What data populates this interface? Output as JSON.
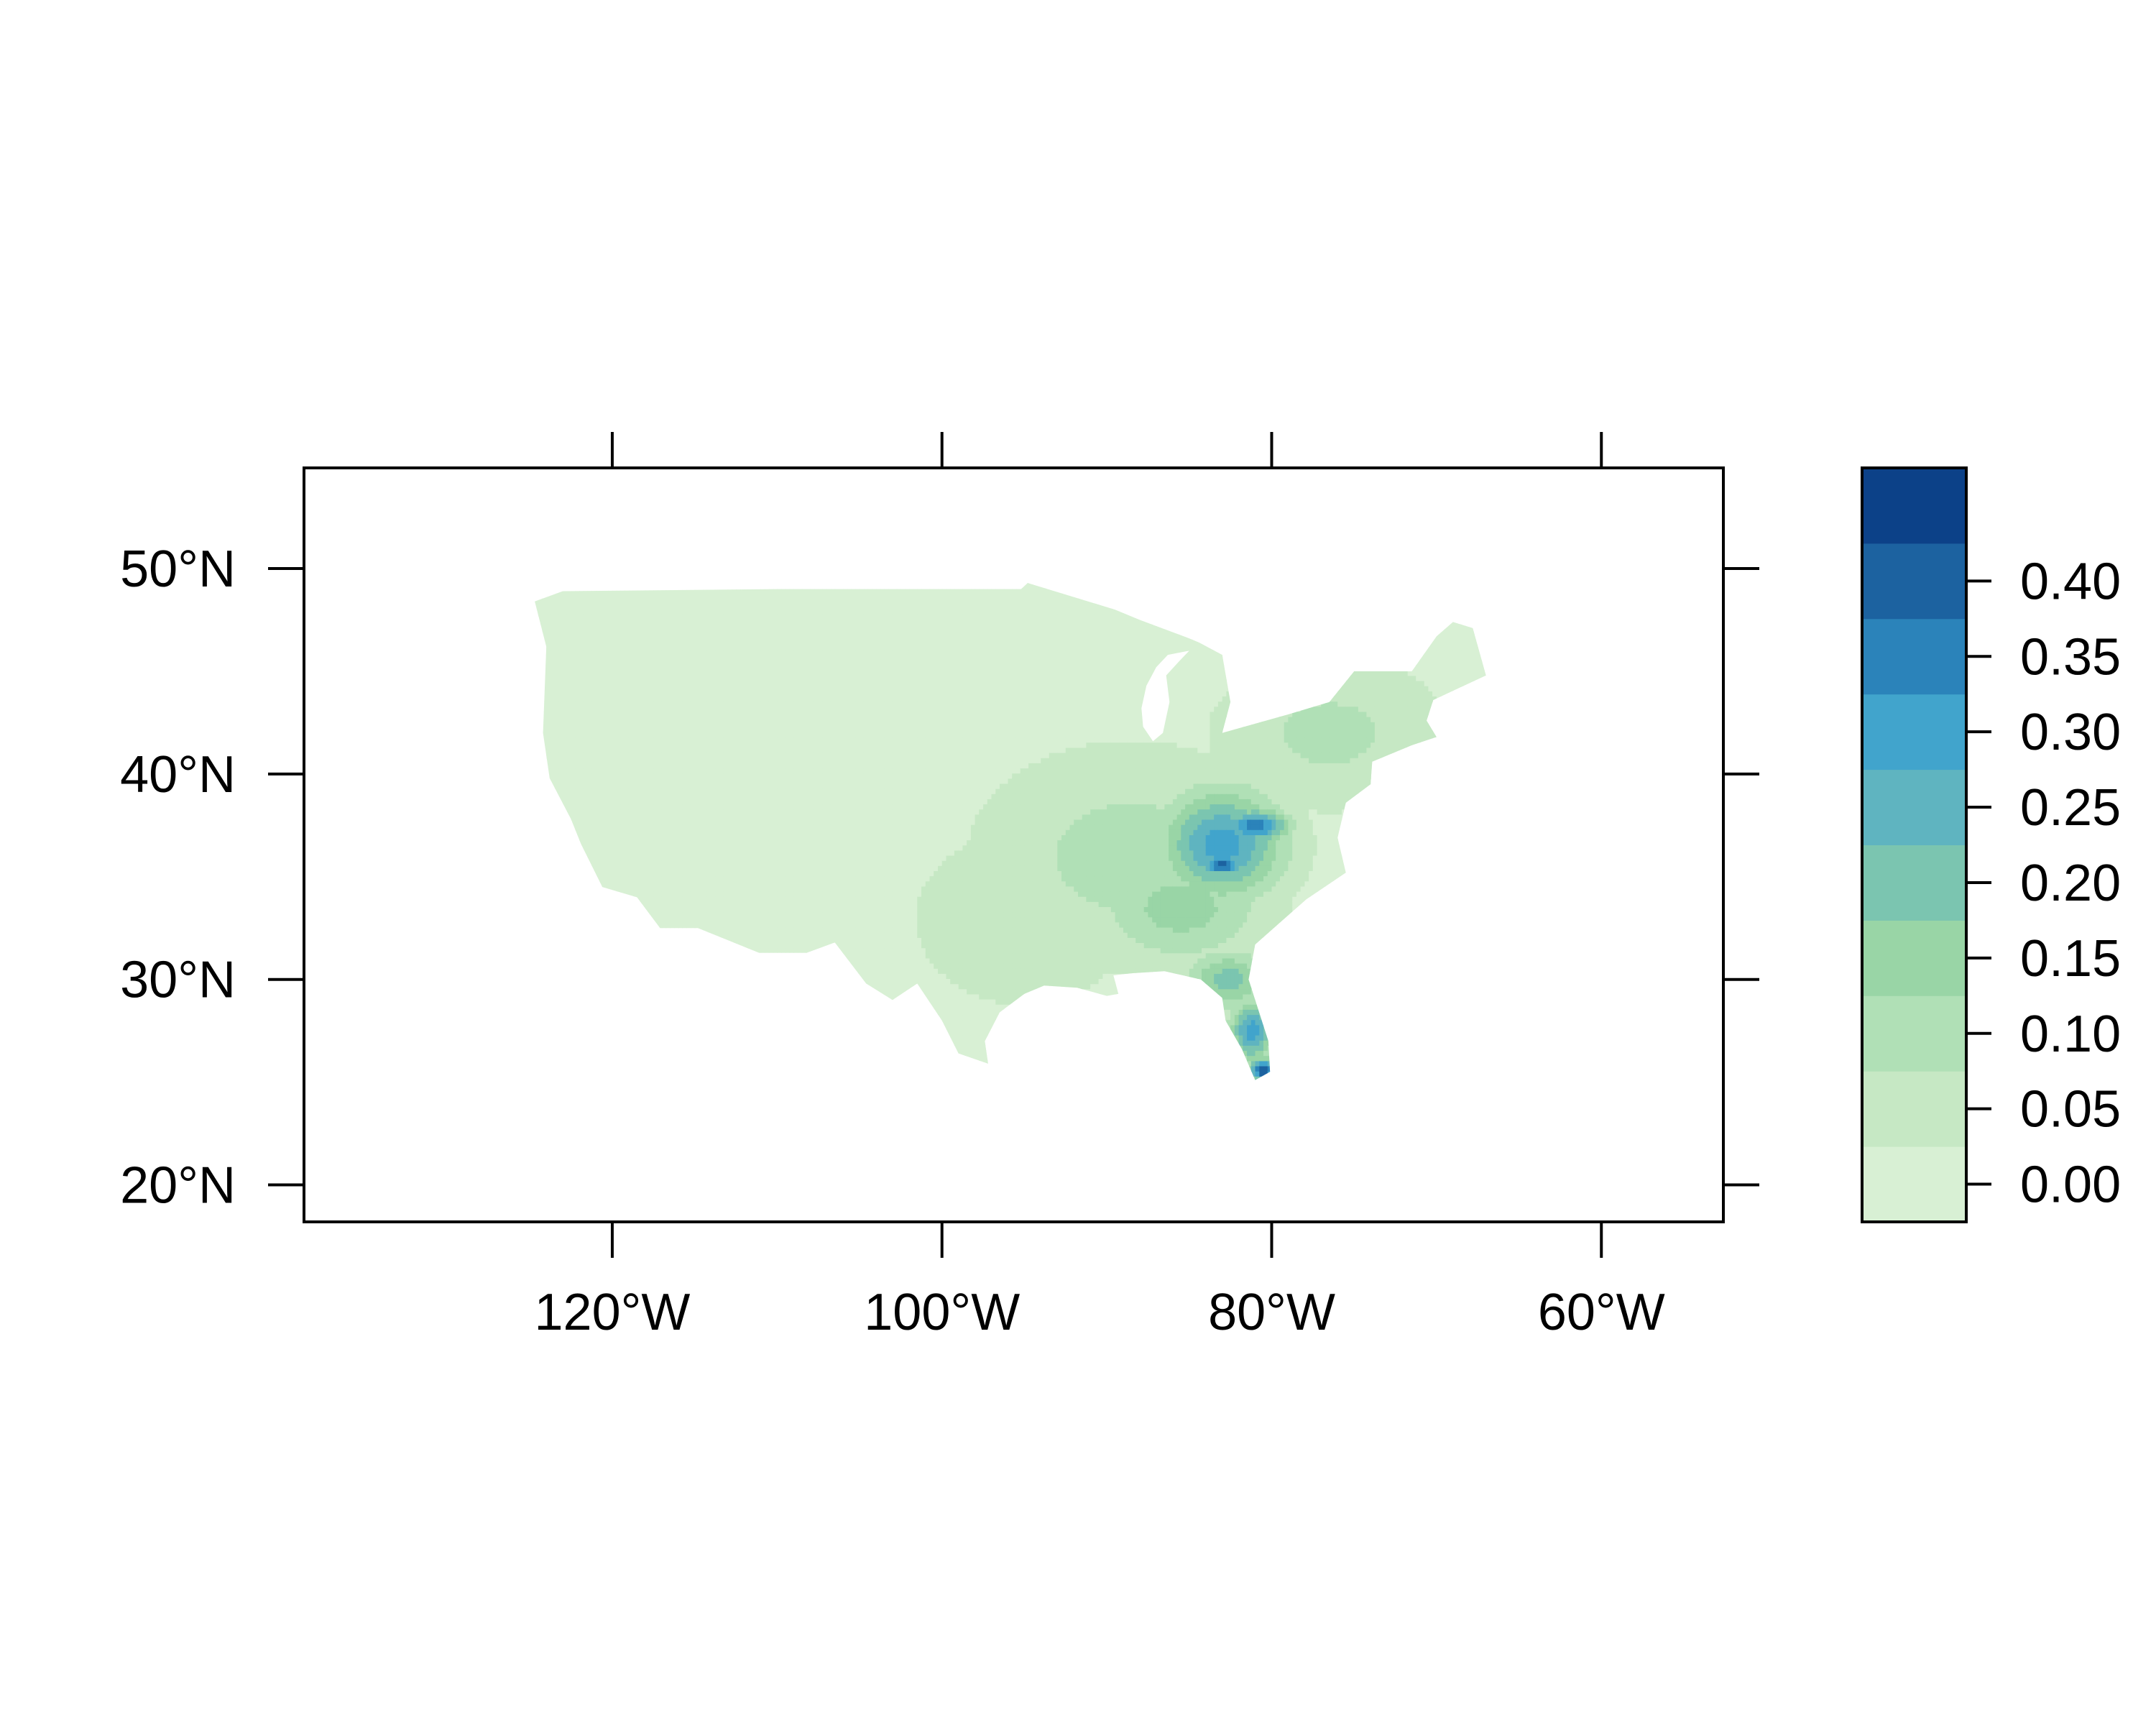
{
  "figure": {
    "x_axis": {
      "ticks": [
        {
          "value": -120,
          "label": "120°W"
        },
        {
          "value": -100,
          "label": "100°W"
        },
        {
          "value": -80,
          "label": "80°W"
        },
        {
          "value": -60,
          "label": "60°W"
        }
      ],
      "range": [
        -138.7,
        -52.6
      ]
    },
    "y_axis": {
      "ticks": [
        {
          "value": 20,
          "label": "20°N"
        },
        {
          "value": 30,
          "label": "30°N"
        },
        {
          "value": 40,
          "label": "40°N"
        },
        {
          "value": 50,
          "label": "50°N"
        }
      ],
      "range": [
        18.2,
        54.9
      ]
    },
    "legend": {
      "placement": "right",
      "ticks": [
        "0.00",
        "0.05",
        "0.10",
        "0.15",
        "0.20",
        "0.25",
        "0.30",
        "0.35",
        "0.40"
      ],
      "classes": [
        {
          "range": [
            -0.025,
            0.025
          ],
          "color": "#d8f0d4"
        },
        {
          "range": [
            0.025,
            0.075
          ],
          "color": "#c6e8c4"
        },
        {
          "range": [
            0.075,
            0.125
          ],
          "color": "#b0e0b6"
        },
        {
          "range": [
            0.125,
            0.175
          ],
          "color": "#99d5a6"
        },
        {
          "range": [
            0.175,
            0.225
          ],
          "color": "#7bc5b0"
        },
        {
          "range": [
            0.225,
            0.275
          ],
          "color": "#5fb4c0"
        },
        {
          "range": [
            0.275,
            0.325
          ],
          "color": "#41a4cc"
        },
        {
          "range": [
            0.325,
            0.375
          ],
          "color": "#2b83ba"
        },
        {
          "range": [
            0.375,
            0.425
          ],
          "color": "#1c62a0"
        },
        {
          "range": [
            0.425,
            0.475
          ],
          "color": "#0c4188"
        }
      ]
    }
  },
  "map_data": {
    "background_value": 0.0,
    "conus_outline_lonlat": [
      [
        -124.7,
        48.4
      ],
      [
        -123.0,
        48.9
      ],
      [
        -110.0,
        49.0
      ],
      [
        -95.2,
        49.0
      ],
      [
        -94.8,
        49.3
      ],
      [
        -89.5,
        48.0
      ],
      [
        -88.0,
        47.5
      ],
      [
        -85.0,
        46.6
      ],
      [
        -84.4,
        46.4
      ],
      [
        -83.0,
        45.8
      ],
      [
        -82.5,
        43.5
      ],
      [
        -83.0,
        42.0
      ],
      [
        -79.0,
        42.9
      ],
      [
        -76.5,
        43.5
      ],
      [
        -75.0,
        45.0
      ],
      [
        -71.5,
        45.0
      ],
      [
        -70.0,
        46.7
      ],
      [
        -69.0,
        47.4
      ],
      [
        -67.8,
        47.1
      ],
      [
        -67.0,
        44.8
      ],
      [
        -70.2,
        43.6
      ],
      [
        -70.6,
        42.6
      ],
      [
        -70.0,
        41.8
      ],
      [
        -71.5,
        41.4
      ],
      [
        -73.9,
        40.6
      ],
      [
        -74.0,
        39.5
      ],
      [
        -75.5,
        38.6
      ],
      [
        -76.0,
        36.9
      ],
      [
        -75.5,
        35.2
      ],
      [
        -77.9,
        33.9
      ],
      [
        -81.0,
        31.7
      ],
      [
        -81.4,
        30.0
      ],
      [
        -80.2,
        27.0
      ],
      [
        -80.1,
        25.5
      ],
      [
        -81.0,
        25.1
      ],
      [
        -81.8,
        26.6
      ],
      [
        -82.8,
        28.0
      ],
      [
        -83.0,
        29.1
      ],
      [
        -84.3,
        30.0
      ],
      [
        -86.5,
        30.4
      ],
      [
        -88.5,
        30.3
      ],
      [
        -89.6,
        30.2
      ],
      [
        -89.3,
        29.3
      ],
      [
        -90.0,
        29.2
      ],
      [
        -91.8,
        29.6
      ],
      [
        -93.8,
        29.7
      ],
      [
        -95.0,
        29.3
      ],
      [
        -96.5,
        28.4
      ],
      [
        -97.4,
        27.0
      ],
      [
        -97.2,
        25.9
      ],
      [
        -99.0,
        26.4
      ],
      [
        -100.0,
        28.0
      ],
      [
        -101.5,
        29.8
      ],
      [
        -103.0,
        29.0
      ],
      [
        -104.6,
        29.8
      ],
      [
        -106.5,
        31.8
      ],
      [
        -108.2,
        31.3
      ],
      [
        -111.1,
        31.3
      ],
      [
        -114.8,
        32.5
      ],
      [
        -117.1,
        32.5
      ],
      [
        -118.5,
        34.0
      ],
      [
        -120.6,
        34.5
      ],
      [
        -121.9,
        36.6
      ],
      [
        -122.5,
        37.8
      ],
      [
        -123.8,
        39.8
      ],
      [
        -124.2,
        42.0
      ],
      [
        -124.0,
        46.2
      ],
      [
        -124.7,
        48.4
      ]
    ],
    "lake_michigan_lonlat": [
      [
        -87.8,
        42.3
      ],
      [
        -87.2,
        41.6
      ],
      [
        -86.6,
        42.0
      ],
      [
        -86.2,
        43.5
      ],
      [
        -86.4,
        44.8
      ],
      [
        -85.6,
        45.5
      ],
      [
        -85.0,
        46.0
      ],
      [
        -86.3,
        45.8
      ],
      [
        -87.0,
        45.2
      ],
      [
        -87.6,
        44.3
      ],
      [
        -87.9,
        43.2
      ]
    ],
    "value_peaks": [
      {
        "lon": -83.0,
        "lat": 35.6,
        "value": 0.42,
        "radius_deg": [
          1.2,
          0.5
        ]
      },
      {
        "lon": -81.0,
        "lat": 37.5,
        "value": 0.36,
        "radius_deg": [
          2.0,
          0.8
        ]
      },
      {
        "lon": -80.5,
        "lat": 25.6,
        "value": 0.42,
        "radius_deg": [
          0.9,
          0.6
        ]
      },
      {
        "lon": -81.2,
        "lat": 27.5,
        "value": 0.3,
        "radius_deg": [
          1.3,
          1.5
        ]
      },
      {
        "lon": -82.6,
        "lat": 30.0,
        "value": 0.2,
        "radius_deg": [
          2.5,
          1.4
        ]
      },
      {
        "lon": -83.0,
        "lat": 36.6,
        "value": 0.3,
        "radius_deg": [
          3.6,
          2.6
        ]
      },
      {
        "lon": -85.5,
        "lat": 33.5,
        "value": 0.15,
        "radius_deg": [
          5.0,
          2.6
        ]
      },
      {
        "lon": -88.5,
        "lat": 36.0,
        "value": 0.1,
        "radius_deg": [
          8.5,
          4.8
        ]
      },
      {
        "lon": -76.5,
        "lat": 42.0,
        "value": 0.09,
        "radius_deg": [
          6.5,
          3.4
        ]
      },
      {
        "lon": -95.0,
        "lat": 33.0,
        "value": 0.06,
        "radius_deg": [
          7.0,
          4.5
        ]
      }
    ]
  }
}
